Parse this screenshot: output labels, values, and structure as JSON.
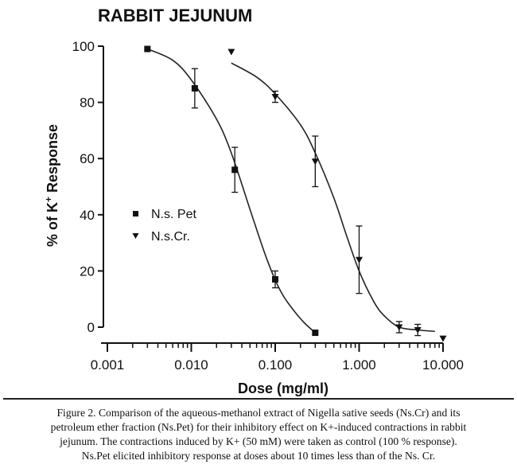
{
  "chart_data": {
    "type": "scatter",
    "title": "RABBIT JEJUNUM",
    "xlabel": "Dose (mg/ml)",
    "ylabel": "% of K+ Response",
    "x_scale": "log",
    "xlim": [
      0.001,
      10
    ],
    "ylim": [
      0,
      100
    ],
    "x_ticks": [
      "0.001",
      "0.010",
      "0.100",
      "1.000",
      "10.000"
    ],
    "y_ticks": [
      "0",
      "20",
      "40",
      "60",
      "80",
      "100"
    ],
    "legend_placement": "center-left",
    "series": [
      {
        "name": "N.s. Pet",
        "marker": "square",
        "points": [
          {
            "x": 0.003,
            "y": 99,
            "err": 0
          },
          {
            "x": 0.011,
            "y": 85,
            "err": 7
          },
          {
            "x": 0.033,
            "y": 56,
            "err": 8
          },
          {
            "x": 0.1,
            "y": 17,
            "err": 3
          },
          {
            "x": 0.3,
            "y": -2,
            "err": 0
          }
        ],
        "fit": [
          {
            "x": 0.003,
            "y": 99
          },
          {
            "x": 0.006,
            "y": 95
          },
          {
            "x": 0.01,
            "y": 88
          },
          {
            "x": 0.02,
            "y": 74
          },
          {
            "x": 0.03,
            "y": 62
          },
          {
            "x": 0.05,
            "y": 42
          },
          {
            "x": 0.08,
            "y": 24
          },
          {
            "x": 0.12,
            "y": 12
          },
          {
            "x": 0.2,
            "y": 3
          },
          {
            "x": 0.3,
            "y": -2
          }
        ]
      },
      {
        "name": "N.s.Cr.",
        "marker": "triangle-down",
        "points": [
          {
            "x": 0.03,
            "y": 98,
            "err": 0
          },
          {
            "x": 0.1,
            "y": 82,
            "err": 2
          },
          {
            "x": 0.3,
            "y": 59,
            "err": 9
          },
          {
            "x": 1.0,
            "y": 24,
            "err": 12
          },
          {
            "x": 3.0,
            "y": 0,
            "err": 2
          },
          {
            "x": 5.0,
            "y": -1,
            "err": 2
          },
          {
            "x": 10.0,
            "y": -4,
            "err": 0
          }
        ],
        "fit": [
          {
            "x": 0.03,
            "y": 94
          },
          {
            "x": 0.06,
            "y": 89
          },
          {
            "x": 0.1,
            "y": 83
          },
          {
            "x": 0.2,
            "y": 72
          },
          {
            "x": 0.3,
            "y": 62
          },
          {
            "x": 0.5,
            "y": 46
          },
          {
            "x": 0.7,
            "y": 33
          },
          {
            "x": 1.0,
            "y": 20
          },
          {
            "x": 1.5,
            "y": 9
          },
          {
            "x": 2.0,
            "y": 4
          },
          {
            "x": 3.0,
            "y": 0
          },
          {
            "x": 5.0,
            "y": -1
          },
          {
            "x": 8.0,
            "y": -1.5
          }
        ]
      }
    ]
  },
  "caption": {
    "lines": [
      "Figure 2. Comparison of the aqueous-methanol extract of Nigella sative seeds (Ns.Cr) and its",
      "petroleum ether fraction (Ns.Pet) for their inhibitory effect on K+-induced contractions in rabbit",
      "jejunum.  The contractions induced by K+ (50 mM) were taken as control (100 % response).",
      "Ns.Pet elicited inhibitory response at doses about 10 times less than of the Ns. Cr."
    ]
  }
}
